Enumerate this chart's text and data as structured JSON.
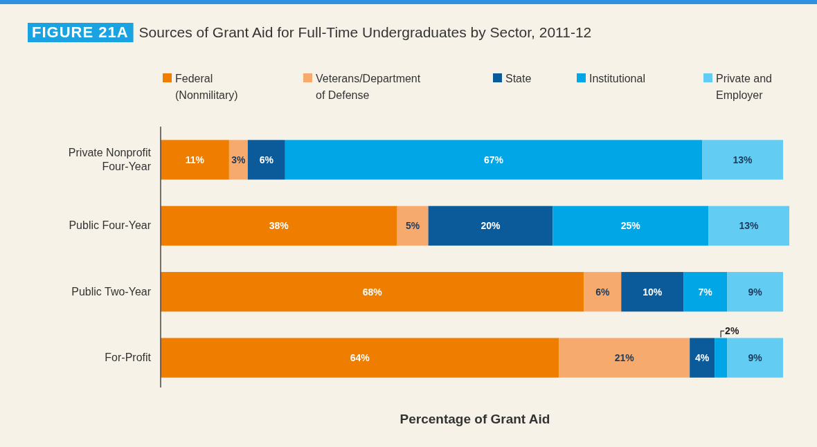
{
  "chart_data": {
    "type": "bar",
    "orientation": "horizontal",
    "stacked": true,
    "subtitle": "FIGURE 21A",
    "title": "Sources of Grant Aid for Full-Time Undergraduates by Sector, 2011-12",
    "xlabel": "Percentage of Grant Aid",
    "categories": [
      "Private Nonprofit Four-Year",
      "Public Four-Year",
      "Public Two-Year",
      "For-Profit"
    ],
    "series": [
      {
        "name": "Federal (Nonmilitary)",
        "color": "#ef7d00",
        "values": [
          11,
          38,
          68,
          64
        ],
        "value_labels": [
          "11%",
          "38%",
          "68%",
          "64%"
        ]
      },
      {
        "name": "Veterans/Department of Defense",
        "color": "#f6aa6e",
        "values": [
          3,
          5,
          6,
          21
        ],
        "value_labels": [
          "3%",
          "5%",
          "6%",
          "21%"
        ]
      },
      {
        "name": "State",
        "color": "#0b5a9a",
        "values": [
          6,
          20,
          10,
          4
        ],
        "value_labels": [
          "6%",
          "20%",
          "10%",
          "4%"
        ]
      },
      {
        "name": "Institutional",
        "color": "#00a6e6",
        "values": [
          67,
          25,
          7,
          2
        ],
        "value_labels": [
          "67%",
          "25%",
          "7%",
          "2%"
        ]
      },
      {
        "name": "Private and Employer",
        "color": "#63ccf2",
        "values": [
          13,
          13,
          9,
          9
        ],
        "value_labels": [
          "13%",
          "13%",
          "9%",
          "9%"
        ]
      }
    ],
    "legend": "top",
    "tick_labels": "y"
  }
}
